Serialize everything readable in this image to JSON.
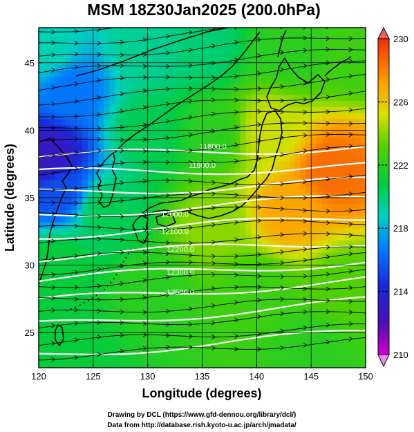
{
  "title": "MSM 18Z30Jan2025 (200.0hPa)",
  "xlabel": "Longitude (degrees)",
  "ylabel": "Latitude (degrees)",
  "x_ticks": [
    "120",
    "125",
    "130",
    "135",
    "140",
    "145",
    "150"
  ],
  "y_ticks": [
    "25",
    "30",
    "35",
    "40",
    "45"
  ],
  "colorbar": {
    "ticks": [
      "210",
      "214",
      "218",
      "222",
      "226",
      "230"
    ],
    "range": [
      210,
      230
    ]
  },
  "credits": {
    "line1": "Drawing by DCL (https://www.gfd-dennou.org/library/dcl/)",
    "line2": "Data from http://database.rish.kyoto-u.ac.jp/arch/jmadata/"
  },
  "contour_labels": [
    "11800.0",
    "11900.0",
    "12000.0",
    "12100.0",
    "12200.0",
    "12300.0",
    "12500.0"
  ],
  "chart_data": {
    "type": "heatmap",
    "title": "MSM 18Z30Jan2025 (200.0hPa)",
    "xlabel": "Longitude (degrees)",
    "ylabel": "Latitude (degrees)",
    "xlim": [
      120,
      150
    ],
    "ylim": [
      22.4,
      47.6
    ],
    "colorbar_range": [
      210,
      230
    ],
    "colorbar_ticks": [
      210,
      214,
      218,
      222,
      226,
      230
    ],
    "field_anchors": [
      {
        "lon": 121,
        "lat": 38,
        "value": 213
      },
      {
        "lon": 123,
        "lat": 43,
        "value": 216.5
      },
      {
        "lon": 121,
        "lat": 46,
        "value": 219
      },
      {
        "lon": 130,
        "lat": 46,
        "value": 219.5
      },
      {
        "lon": 135,
        "lat": 46,
        "value": 220
      },
      {
        "lon": 143,
        "lat": 46,
        "value": 222
      },
      {
        "lon": 149,
        "lat": 46,
        "value": 222.5
      },
      {
        "lon": 130,
        "lat": 40,
        "value": 220.5
      },
      {
        "lon": 136,
        "lat": 40,
        "value": 222
      },
      {
        "lon": 141,
        "lat": 40,
        "value": 225
      },
      {
        "lon": 147,
        "lat": 37,
        "value": 228.5
      },
      {
        "lon": 143,
        "lat": 34,
        "value": 227
      },
      {
        "lon": 136,
        "lat": 33,
        "value": 224
      },
      {
        "lon": 126,
        "lat": 34,
        "value": 220.5
      },
      {
        "lon": 122,
        "lat": 30,
        "value": 221
      },
      {
        "lon": 130,
        "lat": 28,
        "value": 222
      },
      {
        "lon": 140,
        "lat": 28,
        "value": 222.5
      },
      {
        "lon": 148,
        "lat": 28,
        "value": 223
      },
      {
        "lon": 123,
        "lat": 24,
        "value": 221
      },
      {
        "lon": 145,
        "lat": 24,
        "value": 222
      },
      {
        "lon": 122,
        "lat": 35.5,
        "value": 215.5
      }
    ],
    "height_contours": [
      {
        "label": "11800.0",
        "lat_w": 38.0,
        "lat_e": 38.8
      },
      {
        "label": "11900.0",
        "lat_w": 36.8,
        "lat_e": 37.3
      },
      {
        "label": "12000.0",
        "lat_w": 35.3,
        "lat_e": 36.2
      },
      {
        "label": "12100.0",
        "lat_w": 33.7,
        "lat_e": 35.0
      },
      {
        "label": "12200.0",
        "lat_w": 32.2,
        "lat_e": 33.6
      },
      {
        "label": "12300.0",
        "lat_w": 30.6,
        "lat_e": 31.8
      },
      {
        "label": "12400.0",
        "lat_w": 28.9,
        "lat_e": 30.3
      },
      {
        "label": "12500.0",
        "lat_w": 27.3,
        "lat_e": 28.9
      },
      {
        "label": "12600.0",
        "lat_w": 25.5,
        "lat_e": 27.3
      },
      {
        "label": "12700.0",
        "lat_w": 23.3,
        "lat_e": 25.0
      }
    ]
  }
}
